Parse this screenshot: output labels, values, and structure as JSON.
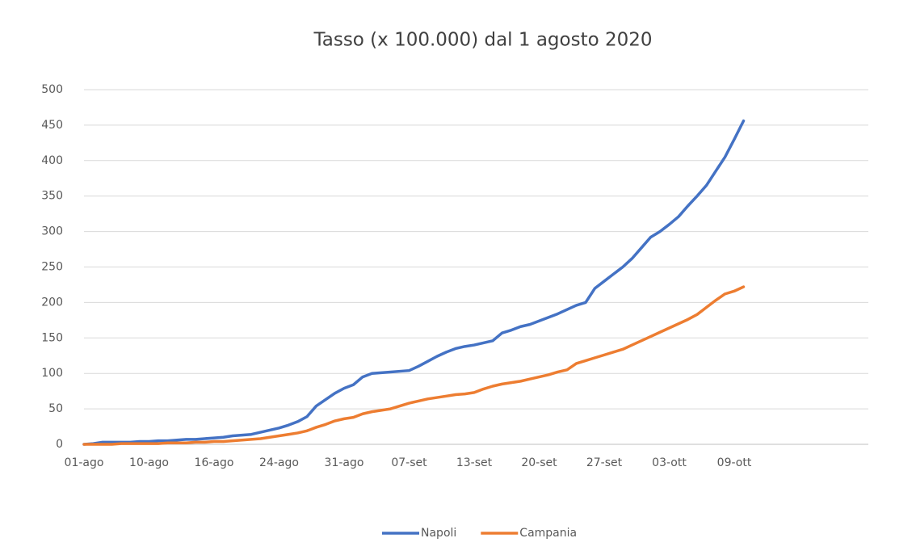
{
  "chart_data": {
    "type": "line",
    "title": "Tasso (x 100.000) dal 1 agosto 2020",
    "categories": [
      "01-ago",
      null,
      null,
      null,
      null,
      null,
      null,
      "10-ago",
      null,
      null,
      null,
      null,
      null,
      null,
      "16-ago",
      null,
      null,
      null,
      null,
      null,
      null,
      "24-ago",
      null,
      null,
      null,
      null,
      null,
      null,
      "31-ago",
      null,
      null,
      null,
      null,
      null,
      null,
      "07-set",
      null,
      null,
      null,
      null,
      null,
      null,
      "13-set",
      null,
      null,
      null,
      null,
      null,
      null,
      "20-set",
      null,
      null,
      null,
      null,
      null,
      null,
      "27-set",
      null,
      null,
      null,
      null,
      null,
      null,
      "03-ott",
      null,
      null,
      null,
      null,
      null,
      null,
      "09-ott",
      null
    ],
    "series": [
      {
        "name": "Napoli",
        "color": "#4472c4",
        "values": [
          0,
          1,
          3,
          3,
          3,
          3,
          4,
          4,
          5,
          5,
          6,
          7,
          7,
          8,
          9,
          10,
          12,
          13,
          14,
          17,
          20,
          23,
          27,
          32,
          39,
          54,
          63,
          72,
          79,
          84,
          95,
          100,
          101,
          102,
          103,
          104,
          110,
          117,
          124,
          130,
          135,
          138,
          140,
          143,
          146,
          157,
          161,
          166,
          169,
          174,
          179,
          184,
          190,
          196,
          200,
          220,
          230,
          240,
          250,
          262,
          277,
          292,
          300,
          310,
          321,
          336,
          350,
          365,
          385,
          405,
          430,
          456
        ]
      },
      {
        "name": "Campania",
        "color": "#ed7d31",
        "values": [
          0,
          0,
          0,
          0,
          1,
          1,
          1,
          1,
          1,
          2,
          2,
          2,
          3,
          3,
          4,
          4,
          5,
          6,
          7,
          8,
          10,
          12,
          14,
          16,
          19,
          24,
          28,
          33,
          36,
          38,
          43,
          46,
          48,
          50,
          54,
          58,
          61,
          64,
          66,
          68,
          70,
          71,
          73,
          78,
          82,
          85,
          87,
          89,
          92,
          95,
          98,
          102,
          105,
          114,
          118,
          122,
          126,
          130,
          134,
          140,
          146,
          152,
          158,
          164,
          170,
          176,
          183,
          193,
          203,
          212,
          216,
          222
        ]
      }
    ],
    "ylim": [
      0,
      500
    ],
    "yticks": [
      0,
      50,
      100,
      150,
      200,
      250,
      300,
      350,
      400,
      450,
      500
    ],
    "grid": true,
    "legend": "bottom"
  }
}
